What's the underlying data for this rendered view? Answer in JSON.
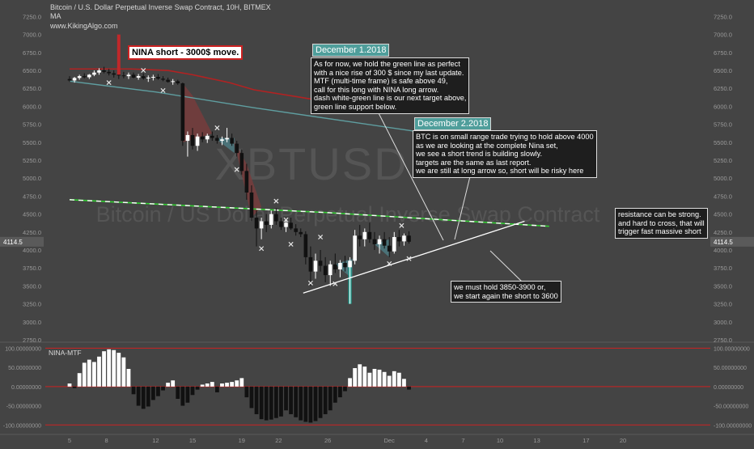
{
  "header": {
    "symbol_line": "Bitcoin / U.S. Dollar Perpetual Inverse Swap Contract, 10H, BITMEX",
    "indicator_line": "MA",
    "site": "www.KikingAlgo.com"
  },
  "watermark": {
    "ticker": "XBTUSD",
    "name": "Bitcoin / US Dollar Perpetual Inverse Swap Contract"
  },
  "panes": {
    "oscillator_label": "NINA-MTF",
    "price_tag": "4114.5"
  },
  "annotations": {
    "nina_short": "NINA short - 3000$ move.",
    "dec1_title": "December 1.2018",
    "dec1_text": "As for now, we hold the green line as perfect\nwith a nice rise of 300 $ since my last update.\nMTF (multi-time frame) is safe above 49,\ncall for this long with NINA long arrow.\ndash white-green line is our next target above,\ngreen line support below.",
    "dec2_title": "December 2.2018",
    "dec2_text": "BTC is on small range trade trying to hold above 4000\nas we are looking at the complete Nina set,\nwe see a short trend is building slowly.\ntargets are the same as last report.\nwe are still at long arrow so, short will be risky here",
    "resistance_text": "resistance can be strong.\nand hard to cross, that will\ntrigger fast massive short",
    "support_text": "we must hold 3850-3900 or,\nwe start again the short to 3600"
  },
  "colors": {
    "background": "#444444",
    "up_candle": "#ffffff",
    "down_candle": "#111111",
    "ma_red": "#b22222",
    "ma_teal": "#5f9ea0",
    "green_line": "#32cd32",
    "hist_line": "#cc2222"
  },
  "chart_data": [
    {
      "type": "candlestick",
      "timeframe": "10H",
      "y_axis_ticks": [
        "7250.0",
        "7000.0",
        "6750.0",
        "6500.0",
        "6250.0",
        "6000.0",
        "5750.0",
        "5500.0",
        "5250.0",
        "5000.0",
        "4750.0",
        "4500.0",
        "4250.0",
        "4000.0",
        "3750.0",
        "3500.0",
        "3250.0",
        "3000.0",
        "2750.0"
      ],
      "ylim": [
        2750,
        7300
      ],
      "x_ticks": [
        "5",
        "8",
        "12",
        "15",
        "19",
        "22",
        "26",
        "Dec",
        "4",
        "7",
        "10",
        "13",
        "17",
        "20"
      ],
      "last_price": 4114.5,
      "candles": [
        {
          "d": 5.0,
          "o": 6380,
          "h": 6420,
          "l": 6340,
          "c": 6360
        },
        {
          "d": 5.4,
          "o": 6360,
          "h": 6410,
          "l": 6330,
          "c": 6395
        },
        {
          "d": 5.8,
          "o": 6395,
          "h": 6440,
          "l": 6370,
          "c": 6420
        },
        {
          "d": 6.2,
          "o": 6420,
          "h": 6460,
          "l": 6390,
          "c": 6405
        },
        {
          "d": 6.6,
          "o": 6405,
          "h": 6450,
          "l": 6380,
          "c": 6440
        },
        {
          "d": 7.0,
          "o": 6440,
          "h": 6500,
          "l": 6420,
          "c": 6470
        },
        {
          "d": 7.4,
          "o": 6470,
          "h": 6530,
          "l": 6440,
          "c": 6500
        },
        {
          "d": 7.8,
          "o": 6500,
          "h": 6550,
          "l": 6460,
          "c": 6480
        },
        {
          "d": 8.2,
          "o": 6480,
          "h": 6520,
          "l": 6430,
          "c": 6460
        },
        {
          "d": 8.6,
          "o": 6460,
          "h": 6500,
          "l": 6400,
          "c": 6440
        },
        {
          "d": 9.0,
          "o": 6440,
          "h": 7000,
          "l": 6380,
          "c": 6430
        },
        {
          "d": 9.4,
          "o": 6430,
          "h": 6480,
          "l": 6390,
          "c": 6420
        },
        {
          "d": 9.8,
          "o": 6420,
          "h": 6470,
          "l": 6380,
          "c": 6440
        },
        {
          "d": 10.2,
          "o": 6440,
          "h": 6470,
          "l": 6390,
          "c": 6400
        },
        {
          "d": 10.6,
          "o": 6400,
          "h": 6450,
          "l": 6370,
          "c": 6420
        },
        {
          "d": 11.0,
          "o": 6420,
          "h": 6460,
          "l": 6370,
          "c": 6390
        },
        {
          "d": 11.4,
          "o": 6390,
          "h": 6430,
          "l": 6340,
          "c": 6400
        },
        {
          "d": 11.8,
          "o": 6400,
          "h": 6440,
          "l": 6360,
          "c": 6410
        },
        {
          "d": 12.2,
          "o": 6410,
          "h": 6450,
          "l": 6370,
          "c": 6385
        },
        {
          "d": 12.6,
          "o": 6385,
          "h": 6420,
          "l": 6350,
          "c": 6370
        },
        {
          "d": 13.0,
          "o": 6370,
          "h": 6400,
          "l": 6330,
          "c": 6340
        },
        {
          "d": 13.4,
          "o": 6340,
          "h": 6380,
          "l": 6300,
          "c": 6350
        },
        {
          "d": 13.8,
          "o": 6350,
          "h": 6370,
          "l": 6300,
          "c": 6320
        },
        {
          "d": 14.2,
          "o": 6320,
          "h": 6330,
          "l": 5450,
          "c": 5520
        },
        {
          "d": 14.6,
          "o": 5520,
          "h": 5650,
          "l": 5300,
          "c": 5600
        },
        {
          "d": 15.0,
          "o": 5600,
          "h": 5700,
          "l": 5400,
          "c": 5450
        },
        {
          "d": 15.4,
          "o": 5450,
          "h": 5620,
          "l": 5380,
          "c": 5580
        },
        {
          "d": 15.8,
          "o": 5580,
          "h": 5640,
          "l": 5500,
          "c": 5540
        },
        {
          "d": 16.2,
          "o": 5540,
          "h": 5620,
          "l": 5490,
          "c": 5590
        },
        {
          "d": 16.6,
          "o": 5590,
          "h": 5650,
          "l": 5520,
          "c": 5560
        },
        {
          "d": 17.0,
          "o": 5560,
          "h": 5600,
          "l": 5480,
          "c": 5520
        },
        {
          "d": 17.4,
          "o": 5520,
          "h": 5580,
          "l": 5460,
          "c": 5540
        },
        {
          "d": 17.8,
          "o": 5540,
          "h": 5700,
          "l": 5500,
          "c": 5560
        },
        {
          "d": 18.2,
          "o": 5560,
          "h": 5620,
          "l": 5450,
          "c": 5480
        },
        {
          "d": 18.6,
          "o": 5480,
          "h": 5520,
          "l": 5300,
          "c": 5350
        },
        {
          "d": 19.0,
          "o": 5350,
          "h": 5400,
          "l": 5050,
          "c": 5100
        },
        {
          "d": 19.4,
          "o": 5100,
          "h": 5200,
          "l": 4700,
          "c": 4800
        },
        {
          "d": 19.8,
          "o": 4800,
          "h": 4900,
          "l": 4400,
          "c": 4450
        },
        {
          "d": 20.2,
          "o": 4450,
          "h": 4550,
          "l": 4050,
          "c": 4300
        },
        {
          "d": 20.6,
          "o": 4300,
          "h": 4450,
          "l": 4150,
          "c": 4400
        },
        {
          "d": 21.0,
          "o": 4400,
          "h": 4500,
          "l": 4250,
          "c": 4350
        },
        {
          "d": 21.4,
          "o": 4350,
          "h": 4550,
          "l": 4300,
          "c": 4500
        },
        {
          "d": 21.8,
          "o": 4500,
          "h": 4580,
          "l": 4350,
          "c": 4400
        },
        {
          "d": 22.2,
          "o": 4400,
          "h": 4450,
          "l": 4280,
          "c": 4320
        },
        {
          "d": 22.6,
          "o": 4320,
          "h": 4420,
          "l": 4250,
          "c": 4380
        },
        {
          "d": 23.0,
          "o": 4380,
          "h": 4450,
          "l": 4280,
          "c": 4300
        },
        {
          "d": 23.4,
          "o": 4300,
          "h": 4360,
          "l": 4200,
          "c": 4250
        },
        {
          "d": 23.8,
          "o": 4250,
          "h": 4300,
          "l": 4180,
          "c": 4220
        },
        {
          "d": 24.2,
          "o": 4220,
          "h": 4260,
          "l": 3800,
          "c": 3900
        },
        {
          "d": 24.6,
          "o": 3900,
          "h": 4050,
          "l": 3500,
          "c": 3700
        },
        {
          "d": 25.0,
          "o": 3700,
          "h": 3950,
          "l": 3600,
          "c": 3850
        },
        {
          "d": 25.4,
          "o": 3850,
          "h": 4000,
          "l": 3700,
          "c": 3780
        },
        {
          "d": 25.8,
          "o": 3780,
          "h": 3900,
          "l": 3550,
          "c": 3650
        },
        {
          "d": 26.2,
          "o": 3650,
          "h": 3850,
          "l": 3500,
          "c": 3800
        },
        {
          "d": 26.6,
          "o": 3800,
          "h": 3950,
          "l": 3680,
          "c": 3730
        },
        {
          "d": 27.0,
          "o": 3730,
          "h": 3860,
          "l": 3620,
          "c": 3820
        },
        {
          "d": 27.4,
          "o": 3820,
          "h": 3920,
          "l": 3700,
          "c": 3760
        },
        {
          "d": 27.8,
          "o": 3760,
          "h": 3900,
          "l": 3250,
          "c": 3850
        },
        {
          "d": 28.2,
          "o": 3850,
          "h": 4280,
          "l": 3800,
          "c": 4200
        },
        {
          "d": 28.6,
          "o": 4200,
          "h": 4350,
          "l": 4050,
          "c": 4150
        },
        {
          "d": 29.0,
          "o": 4150,
          "h": 4300,
          "l": 4050,
          "c": 4250
        },
        {
          "d": 29.4,
          "o": 4250,
          "h": 4380,
          "l": 4100,
          "c": 4150
        },
        {
          "d": 29.8,
          "o": 4150,
          "h": 4250,
          "l": 4000,
          "c": 4080
        },
        {
          "d": 30.2,
          "o": 4080,
          "h": 4200,
          "l": 3950,
          "c": 4150
        },
        {
          "d": 30.6,
          "o": 4150,
          "h": 4250,
          "l": 4020,
          "c": 4060
        },
        {
          "d": 31.0,
          "o": 4060,
          "h": 4180,
          "l": 3900,
          "c": 3980
        },
        {
          "d": 31.4,
          "o": 3980,
          "h": 4250,
          "l": 3950,
          "c": 4180
        },
        {
          "d": 31.8,
          "o": 4180,
          "h": 4280,
          "l": 4050,
          "c": 4120
        },
        {
          "d": 32.2,
          "o": 4120,
          "h": 4230,
          "l": 4060,
          "c": 4200
        },
        {
          "d": 32.6,
          "o": 4200,
          "h": 4260,
          "l": 4090,
          "c": 4114.5
        }
      ],
      "markers": [
        {
          "d": 8.2,
          "v": 6330
        },
        {
          "d": 11.0,
          "v": 6500
        },
        {
          "d": 12.6,
          "v": 6220
        },
        {
          "d": 17.0,
          "v": 5700
        },
        {
          "d": 18.6,
          "v": 5120
        },
        {
          "d": 20.6,
          "v": 4020
        },
        {
          "d": 21.8,
          "v": 4680
        },
        {
          "d": 22.6,
          "v": 4420
        },
        {
          "d": 23.0,
          "v": 4080
        },
        {
          "d": 24.6,
          "v": 3540
        },
        {
          "d": 25.4,
          "v": 4180
        },
        {
          "d": 26.6,
          "v": 3530
        },
        {
          "d": 31.0,
          "v": 3810
        },
        {
          "d": 32.0,
          "v": 4340
        },
        {
          "d": 32.6,
          "v": 3880
        }
      ],
      "ma_red": [
        [
          5,
          6520
        ],
        [
          8,
          6520
        ],
        [
          10,
          6520
        ],
        [
          13,
          6500
        ],
        [
          15,
          6440
        ],
        [
          18,
          6330
        ],
        [
          20,
          6230
        ],
        [
          24,
          6120
        ],
        [
          28,
          6000
        ],
        [
          32,
          5900
        ]
      ],
      "ma_teal": [
        [
          5,
          6350
        ],
        [
          12,
          6200
        ],
        [
          20,
          5980
        ],
        [
          28,
          5780
        ],
        [
          36,
          5580
        ],
        [
          44,
          5390
        ]
      ],
      "green_line": [
        [
          5,
          4700
        ],
        [
          26,
          4520
        ],
        [
          44,
          4330
        ]
      ],
      "support_line": [
        [
          24,
          3400
        ],
        [
          42,
          4400
        ]
      ]
    },
    {
      "type": "histogram",
      "title": "NINA-MTF",
      "y_axis_ticks": [
        "100.00000000",
        "50.00000000",
        "0.00000000",
        "-50.00000000",
        "-100.00000000"
      ],
      "ylim": [
        -110,
        105
      ],
      "bars": [
        {
          "d": 5.0,
          "v": 8
        },
        {
          "d": 5.4,
          "v": -4
        },
        {
          "d": 5.8,
          "v": 35
        },
        {
          "d": 6.2,
          "v": 62
        },
        {
          "d": 6.6,
          "v": 70
        },
        {
          "d": 7.0,
          "v": 64
        },
        {
          "d": 7.4,
          "v": 78
        },
        {
          "d": 7.8,
          "v": 92
        },
        {
          "d": 8.2,
          "v": 97
        },
        {
          "d": 8.6,
          "v": 95
        },
        {
          "d": 9.0,
          "v": 88
        },
        {
          "d": 9.4,
          "v": 76
        },
        {
          "d": 9.8,
          "v": 46
        },
        {
          "d": 10.2,
          "v": -20
        },
        {
          "d": 10.6,
          "v": -50
        },
        {
          "d": 11.0,
          "v": -58
        },
        {
          "d": 11.4,
          "v": -52
        },
        {
          "d": 11.8,
          "v": -35
        },
        {
          "d": 12.2,
          "v": -25
        },
        {
          "d": 12.6,
          "v": -10
        },
        {
          "d": 13.0,
          "v": 10
        },
        {
          "d": 13.4,
          "v": 16
        },
        {
          "d": 13.8,
          "v": -32
        },
        {
          "d": 14.2,
          "v": -50
        },
        {
          "d": 14.6,
          "v": -42
        },
        {
          "d": 15.0,
          "v": -22
        },
        {
          "d": 15.4,
          "v": -8
        },
        {
          "d": 15.8,
          "v": 5
        },
        {
          "d": 16.2,
          "v": 8
        },
        {
          "d": 16.6,
          "v": 12
        },
        {
          "d": 17.0,
          "v": -15
        },
        {
          "d": 17.4,
          "v": 8
        },
        {
          "d": 17.8,
          "v": 10
        },
        {
          "d": 18.2,
          "v": 12
        },
        {
          "d": 18.6,
          "v": 16
        },
        {
          "d": 19.0,
          "v": 22
        },
        {
          "d": 19.4,
          "v": -28
        },
        {
          "d": 19.8,
          "v": -56
        },
        {
          "d": 20.2,
          "v": -72
        },
        {
          "d": 20.6,
          "v": -85
        },
        {
          "d": 21.0,
          "v": -88
        },
        {
          "d": 21.4,
          "v": -86
        },
        {
          "d": 21.8,
          "v": -82
        },
        {
          "d": 22.2,
          "v": -78
        },
        {
          "d": 22.6,
          "v": -62
        },
        {
          "d": 23.0,
          "v": -72
        },
        {
          "d": 23.4,
          "v": -80
        },
        {
          "d": 23.8,
          "v": -88
        },
        {
          "d": 24.2,
          "v": -92
        },
        {
          "d": 24.6,
          "v": -94
        },
        {
          "d": 25.0,
          "v": -90
        },
        {
          "d": 25.4,
          "v": -82
        },
        {
          "d": 25.8,
          "v": -72
        },
        {
          "d": 26.2,
          "v": -62
        },
        {
          "d": 26.6,
          "v": -42
        },
        {
          "d": 27.0,
          "v": -28
        },
        {
          "d": 27.4,
          "v": -12
        },
        {
          "d": 27.8,
          "v": 22
        },
        {
          "d": 28.2,
          "v": 48
        },
        {
          "d": 28.6,
          "v": 58
        },
        {
          "d": 29.0,
          "v": 52
        },
        {
          "d": 29.4,
          "v": 36
        },
        {
          "d": 29.8,
          "v": 46
        },
        {
          "d": 30.2,
          "v": 44
        },
        {
          "d": 30.6,
          "v": 38
        },
        {
          "d": 31.0,
          "v": 28
        },
        {
          "d": 31.4,
          "v": 40
        },
        {
          "d": 31.8,
          "v": 36
        },
        {
          "d": 32.2,
          "v": 20
        },
        {
          "d": 32.6,
          "v": -8
        }
      ],
      "reference_lines": [
        100,
        0,
        -100
      ]
    }
  ]
}
